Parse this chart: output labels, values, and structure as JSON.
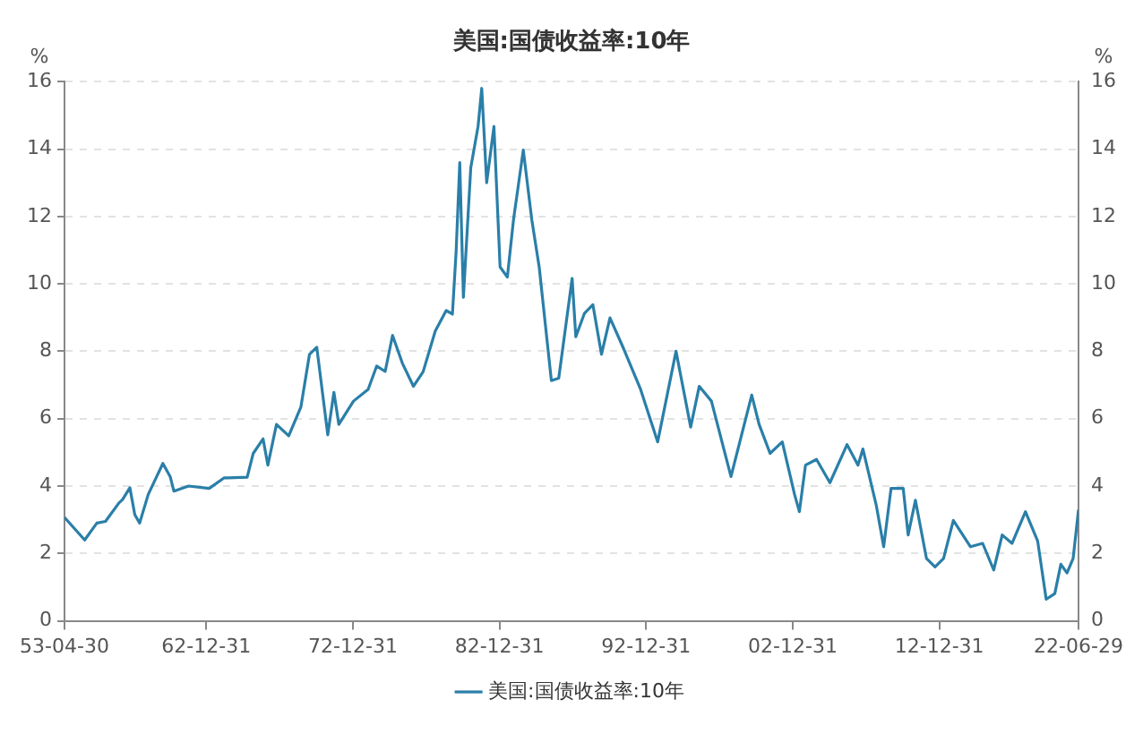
{
  "chart_data": {
    "type": "line",
    "title": "美国:国债收益率:10年",
    "ylabel": "%",
    "y2label": "%",
    "x": [
      "1953-04-30",
      "1954-09",
      "1955-07",
      "1956-02",
      "1957-01",
      "1957-04",
      "1957-10",
      "1958-02",
      "1958-06",
      "1959-01",
      "1960-01",
      "1960-07",
      "1960-10",
      "1961-10",
      "1963-03",
      "1964-03",
      "1965-10",
      "1966-03",
      "1966-11",
      "1967-03",
      "1967-10",
      "1968-08",
      "1969-06",
      "1970-01",
      "1970-07",
      "1971-04",
      "1971-09",
      "1972-01",
      "1973-01",
      "1974-01",
      "1974-08",
      "1975-03",
      "1975-09",
      "1976-05",
      "1977-02",
      "1977-10",
      "1978-08",
      "1979-05",
      "1979-10",
      "1980-01",
      "1980-04",
      "1980-07",
      "1981-01",
      "1981-07",
      "1981-10",
      "1982-02",
      "1982-08",
      "1983-01",
      "1983-07",
      "1983-12",
      "1984-08",
      "1985-03",
      "1985-09",
      "1986-07",
      "1987-01",
      "1987-12",
      "1988-03",
      "1988-10",
      "1989-05",
      "1989-12",
      "1990-07",
      "1991-06",
      "1992-08",
      "1993-10",
      "1995-01",
      "1996-01",
      "1996-08",
      "1997-06",
      "1998-10",
      "2000-03",
      "2000-09",
      "2001-06",
      "2002-04",
      "2003-02",
      "2003-06",
      "2003-11",
      "2004-08",
      "2005-07",
      "2006-09",
      "2007-06",
      "2007-10",
      "2008-09",
      "2009-03",
      "2009-09",
      "2010-07",
      "2010-11",
      "2011-05",
      "2012-02",
      "2012-09",
      "2013-04",
      "2013-12",
      "2015-02",
      "2015-12",
      "2016-09",
      "2017-04",
      "2017-12",
      "2018-11",
      "2019-09",
      "2020-04",
      "2020-11",
      "2021-04",
      "2021-09",
      "2022-02",
      "2022-06-29"
    ],
    "series": [
      {
        "name": "美国:国债收益率:10年",
        "color": "#2a7fa8",
        "values": [
          3.07,
          2.4,
          2.9,
          2.95,
          3.5,
          3.6,
          3.95,
          3.15,
          2.9,
          3.75,
          4.67,
          4.28,
          3.85,
          4.0,
          3.93,
          4.24,
          4.26,
          4.97,
          5.4,
          4.62,
          5.83,
          5.49,
          6.35,
          7.91,
          8.12,
          5.52,
          6.78,
          5.83,
          6.52,
          6.87,
          7.56,
          7.4,
          8.47,
          7.65,
          6.96,
          7.39,
          8.6,
          9.21,
          9.1,
          10.94,
          13.6,
          9.6,
          13.45,
          14.67,
          15.8,
          13.0,
          14.67,
          10.5,
          10.2,
          11.9,
          13.97,
          11.9,
          10.5,
          7.13,
          7.2,
          10.16,
          8.43,
          9.12,
          9.38,
          7.91,
          8.99,
          8.09,
          6.87,
          5.31,
          8.0,
          5.75,
          6.96,
          6.52,
          4.28,
          6.7,
          5.83,
          4.97,
          5.31,
          3.75,
          3.24,
          4.62,
          4.79,
          4.1,
          5.23,
          4.62,
          5.1,
          3.41,
          2.2,
          3.93,
          3.93,
          2.55,
          3.58,
          1.85,
          1.6,
          1.85,
          2.98,
          2.2,
          2.3,
          1.51,
          2.55,
          2.3,
          3.24,
          2.37,
          0.64,
          0.81,
          1.68,
          1.42,
          1.85,
          3.3
        ]
      }
    ],
    "xlim": [
      "1953-04-30",
      "2022-06-29"
    ],
    "xticks": [
      {
        "value": "1953-04-30",
        "label": "53-04-30"
      },
      {
        "value": "1962-12-31",
        "label": "62-12-31"
      },
      {
        "value": "1972-12-31",
        "label": "72-12-31"
      },
      {
        "value": "1982-12-31",
        "label": "82-12-31"
      },
      {
        "value": "1992-12-31",
        "label": "92-12-31"
      },
      {
        "value": "2002-12-31",
        "label": "02-12-31"
      },
      {
        "value": "2012-12-31",
        "label": "12-12-31"
      },
      {
        "value": "2022-06-29",
        "label": "22-06-29"
      }
    ],
    "ylim": [
      0,
      16
    ],
    "yticks": [
      0,
      2,
      4,
      6,
      8,
      10,
      12,
      14,
      16
    ],
    "y2lim": [
      0,
      16
    ],
    "y2ticks": [
      0,
      2,
      4,
      6,
      8,
      10,
      12,
      14,
      16
    ],
    "grid": "y",
    "legend": "bottom",
    "marker": "none",
    "line_style": "solid"
  }
}
